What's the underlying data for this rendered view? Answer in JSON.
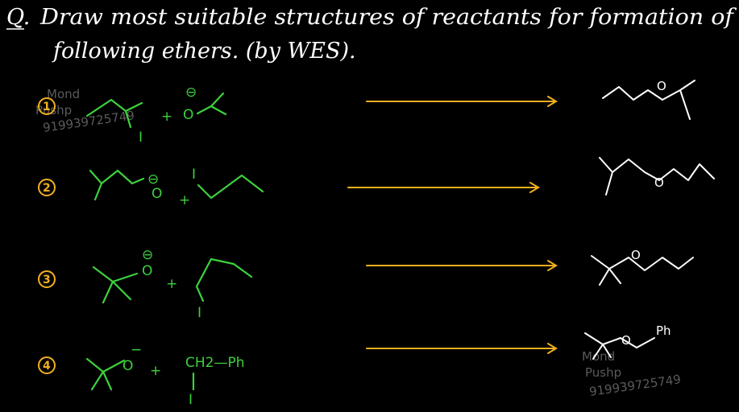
{
  "question": {
    "marker": "Q.",
    "line1": "Draw most suitable structures of reactants for formation of",
    "line2": "following ethers. (by WES)."
  },
  "watermark": {
    "name1": "Mond",
    "name2": "Pushp",
    "phone": "919939725749"
  },
  "rows": [
    {
      "number": "1",
      "reactant1_label": "I",
      "plus": "+",
      "reactant2_label": "O",
      "charge": "⊖"
    },
    {
      "number": "2",
      "reactant1_label": "O",
      "charge": "⊖",
      "plus": "+",
      "reactant2_label": "I"
    },
    {
      "number": "3",
      "reactant1_label": "O",
      "charge": "⊖",
      "plus": "+",
      "reactant2_label": "I"
    },
    {
      "number": "4",
      "reactant1_label": "O",
      "charge": "−",
      "plus": "+",
      "reactant2_label": "CH2—Ph",
      "reactant2_sub": "I"
    }
  ],
  "products": [
    {
      "atom": "O"
    },
    {
      "atom": "O"
    },
    {
      "atom": "O"
    },
    {
      "atom": "O",
      "group": "Ph"
    }
  ],
  "colors": {
    "background": "#000000",
    "reactant_ink": "#3dd13d",
    "number_ink": "#f2b01e",
    "arrow_ink": "#f2b01e",
    "product_ink": "#ffffff"
  }
}
